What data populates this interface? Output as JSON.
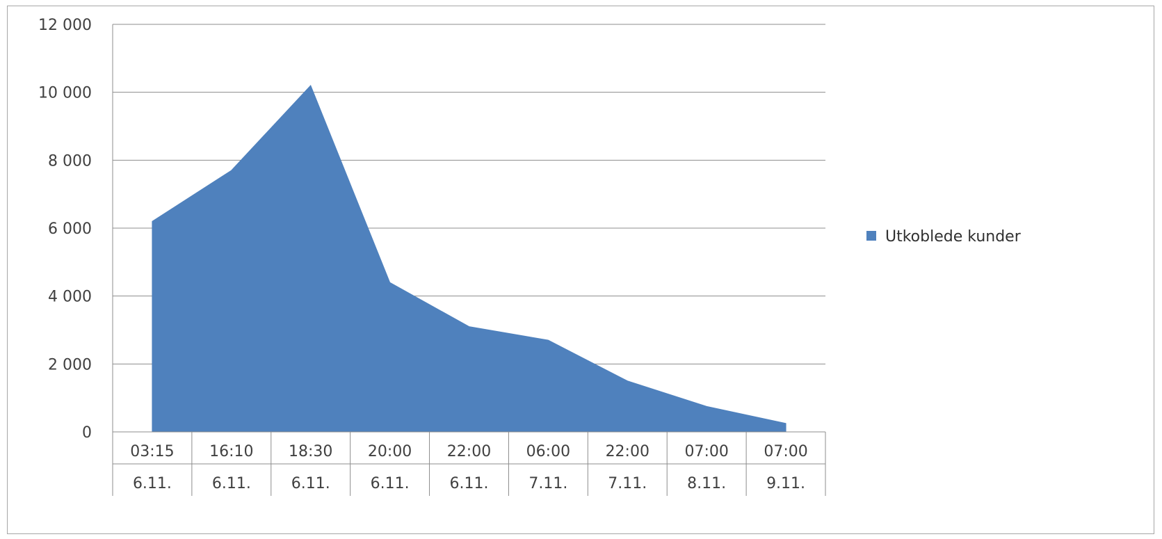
{
  "chart_data": {
    "type": "area",
    "categories": [
      [
        "03:15",
        "6.11."
      ],
      [
        "16:10",
        "6.11."
      ],
      [
        "18:30",
        "6.11."
      ],
      [
        "20:00",
        "6.11."
      ],
      [
        "22:00",
        "6.11."
      ],
      [
        "06:00",
        "7.11."
      ],
      [
        "22:00",
        "7.11."
      ],
      [
        "07:00",
        "8.11."
      ],
      [
        "07:00",
        "9.11."
      ]
    ],
    "series": [
      {
        "name": "Utkoblede kunder",
        "color": "#4f81bd",
        "values": [
          6200,
          7700,
          10200,
          4400,
          3100,
          2700,
          1500,
          750,
          250
        ]
      }
    ],
    "ylim": [
      0,
      12000
    ],
    "yticks": [
      0,
      2000,
      4000,
      6000,
      8000,
      10000,
      12000
    ],
    "ytick_labels": [
      "0",
      "2 000",
      "4 000",
      "6 000",
      "8 000",
      "10 000",
      "12 000"
    ],
    "grid": true,
    "legend": "right"
  }
}
